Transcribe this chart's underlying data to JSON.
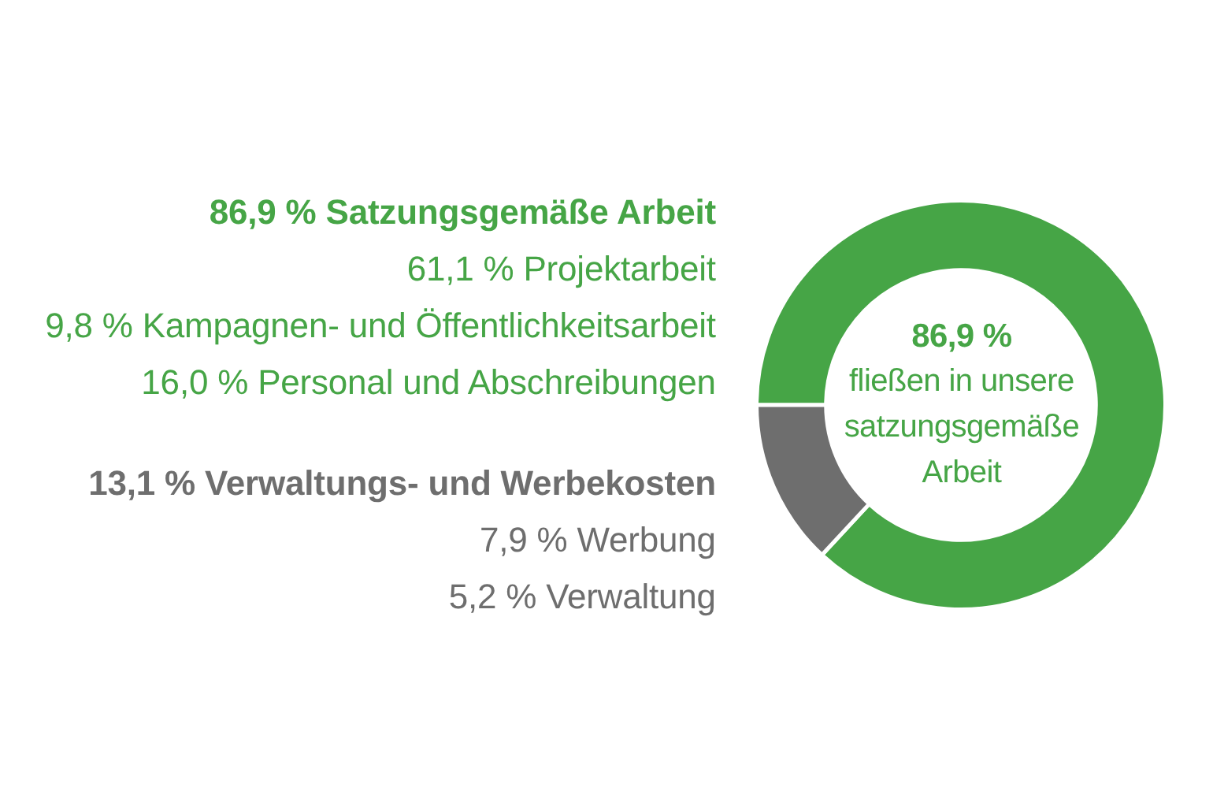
{
  "chart_data": {
    "type": "donut",
    "categories": [
      "86,9 % Satzungsgemäße Arbeit",
      "13,1 % Verwaltungs- und Werbekosten"
    ],
    "values": [
      86.9,
      13.1
    ],
    "colors": [
      "#46a546",
      "#6e6e6e"
    ],
    "annotations": [
      "86,9 %",
      "fließen in unsere satzungsgemäße Arbeit",
      {
        "text": "61,1 % Projektarbeit",
        "x": "86,9 % Satzungsgemäße Arbeit"
      },
      {
        "text": "9,8 % Kampagnen- und Öffentlichkeitsarbeit",
        "x": "86,9 % Satzungsgemäße Arbeit"
      },
      {
        "text": "16,0 % Personal und Abschreibungen",
        "x": "86,9 % Satzungsgemäße Arbeit"
      },
      {
        "text": "7,9 % Werbung",
        "x": "13,1 % Verwaltungs- und Werbekosten"
      },
      {
        "text": "5,2 % Verwaltung",
        "x": "13,1 % Verwaltungs- und Werbekosten"
      }
    ]
  }
}
